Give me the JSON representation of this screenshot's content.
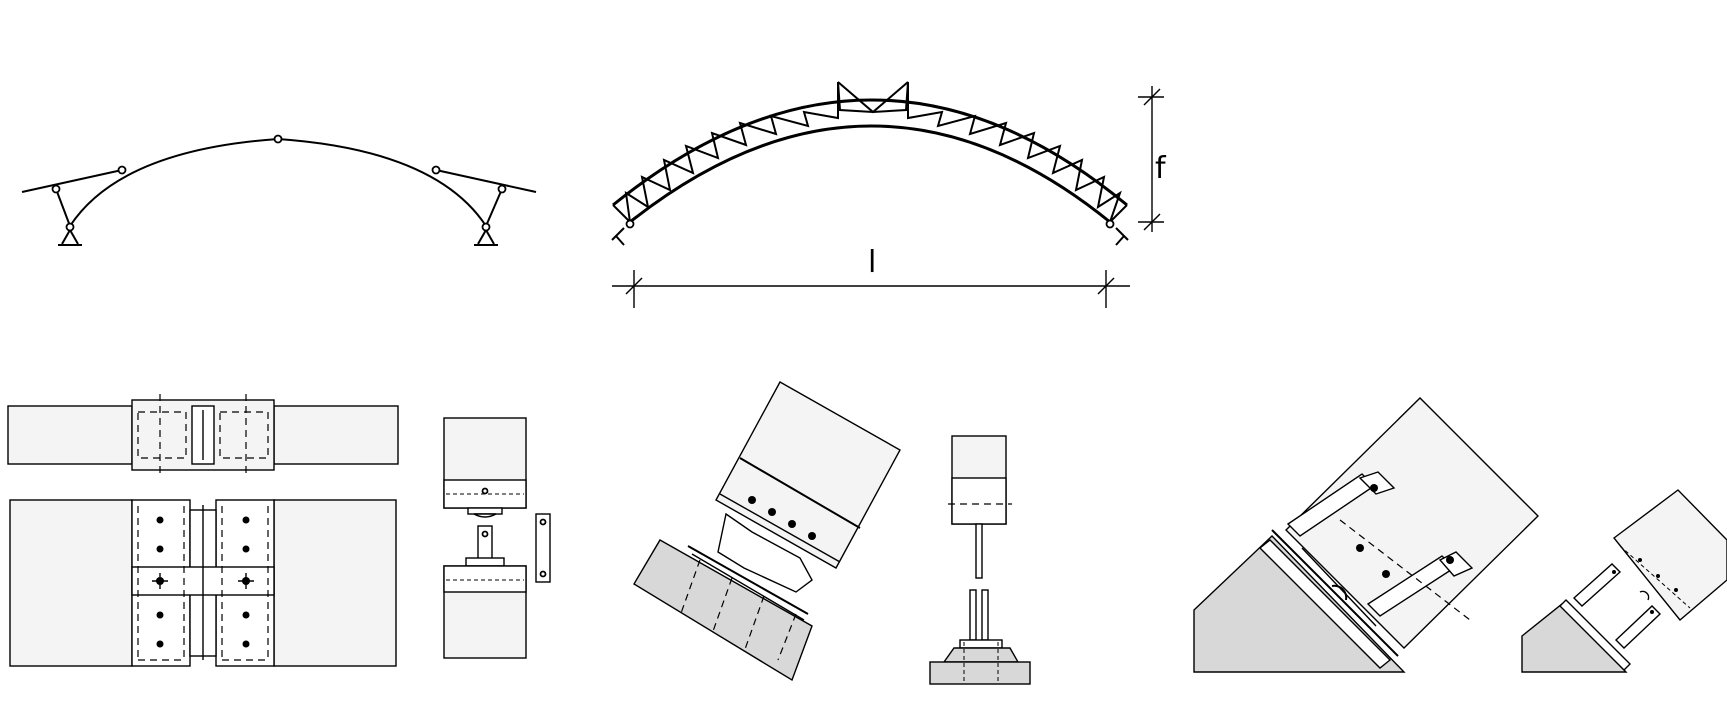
{
  "dimensions": {
    "span_label": "l",
    "rise_label": "f"
  },
  "colors": {
    "line": "#000000",
    "steel_fill": "#f4f4f4",
    "concrete_fill": "#d8d8d8",
    "background": "#ffffff"
  }
}
